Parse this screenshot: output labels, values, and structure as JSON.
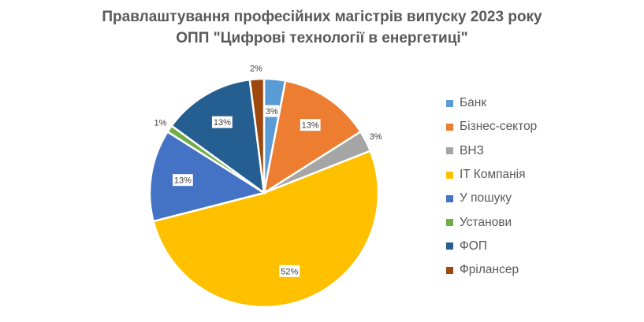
{
  "chart_data": {
    "type": "pie",
    "title": "Правлаштування професійних магістрів випуску 2023 року",
    "subtitle": "ОПП \"Цифрові технології в енергетиці\"",
    "categories": [
      "Банк",
      "Бізнес-сектор",
      "ВНЗ",
      "IT Компанія",
      "У пошуку",
      "Установи",
      "ФОП",
      "Фрілансер"
    ],
    "values": [
      3,
      13,
      3,
      52,
      13,
      1,
      13,
      2
    ],
    "data_labels": [
      "3%",
      "13%",
      "3%",
      "52%",
      "13%",
      "1%",
      "13%",
      "2%"
    ],
    "colors": [
      "#5B9BD5",
      "#ED7D31",
      "#A5A5A5",
      "#FFC000",
      "#4472C4",
      "#70AD47",
      "#255E91",
      "#9E480E"
    ],
    "legend_position": "right"
  }
}
